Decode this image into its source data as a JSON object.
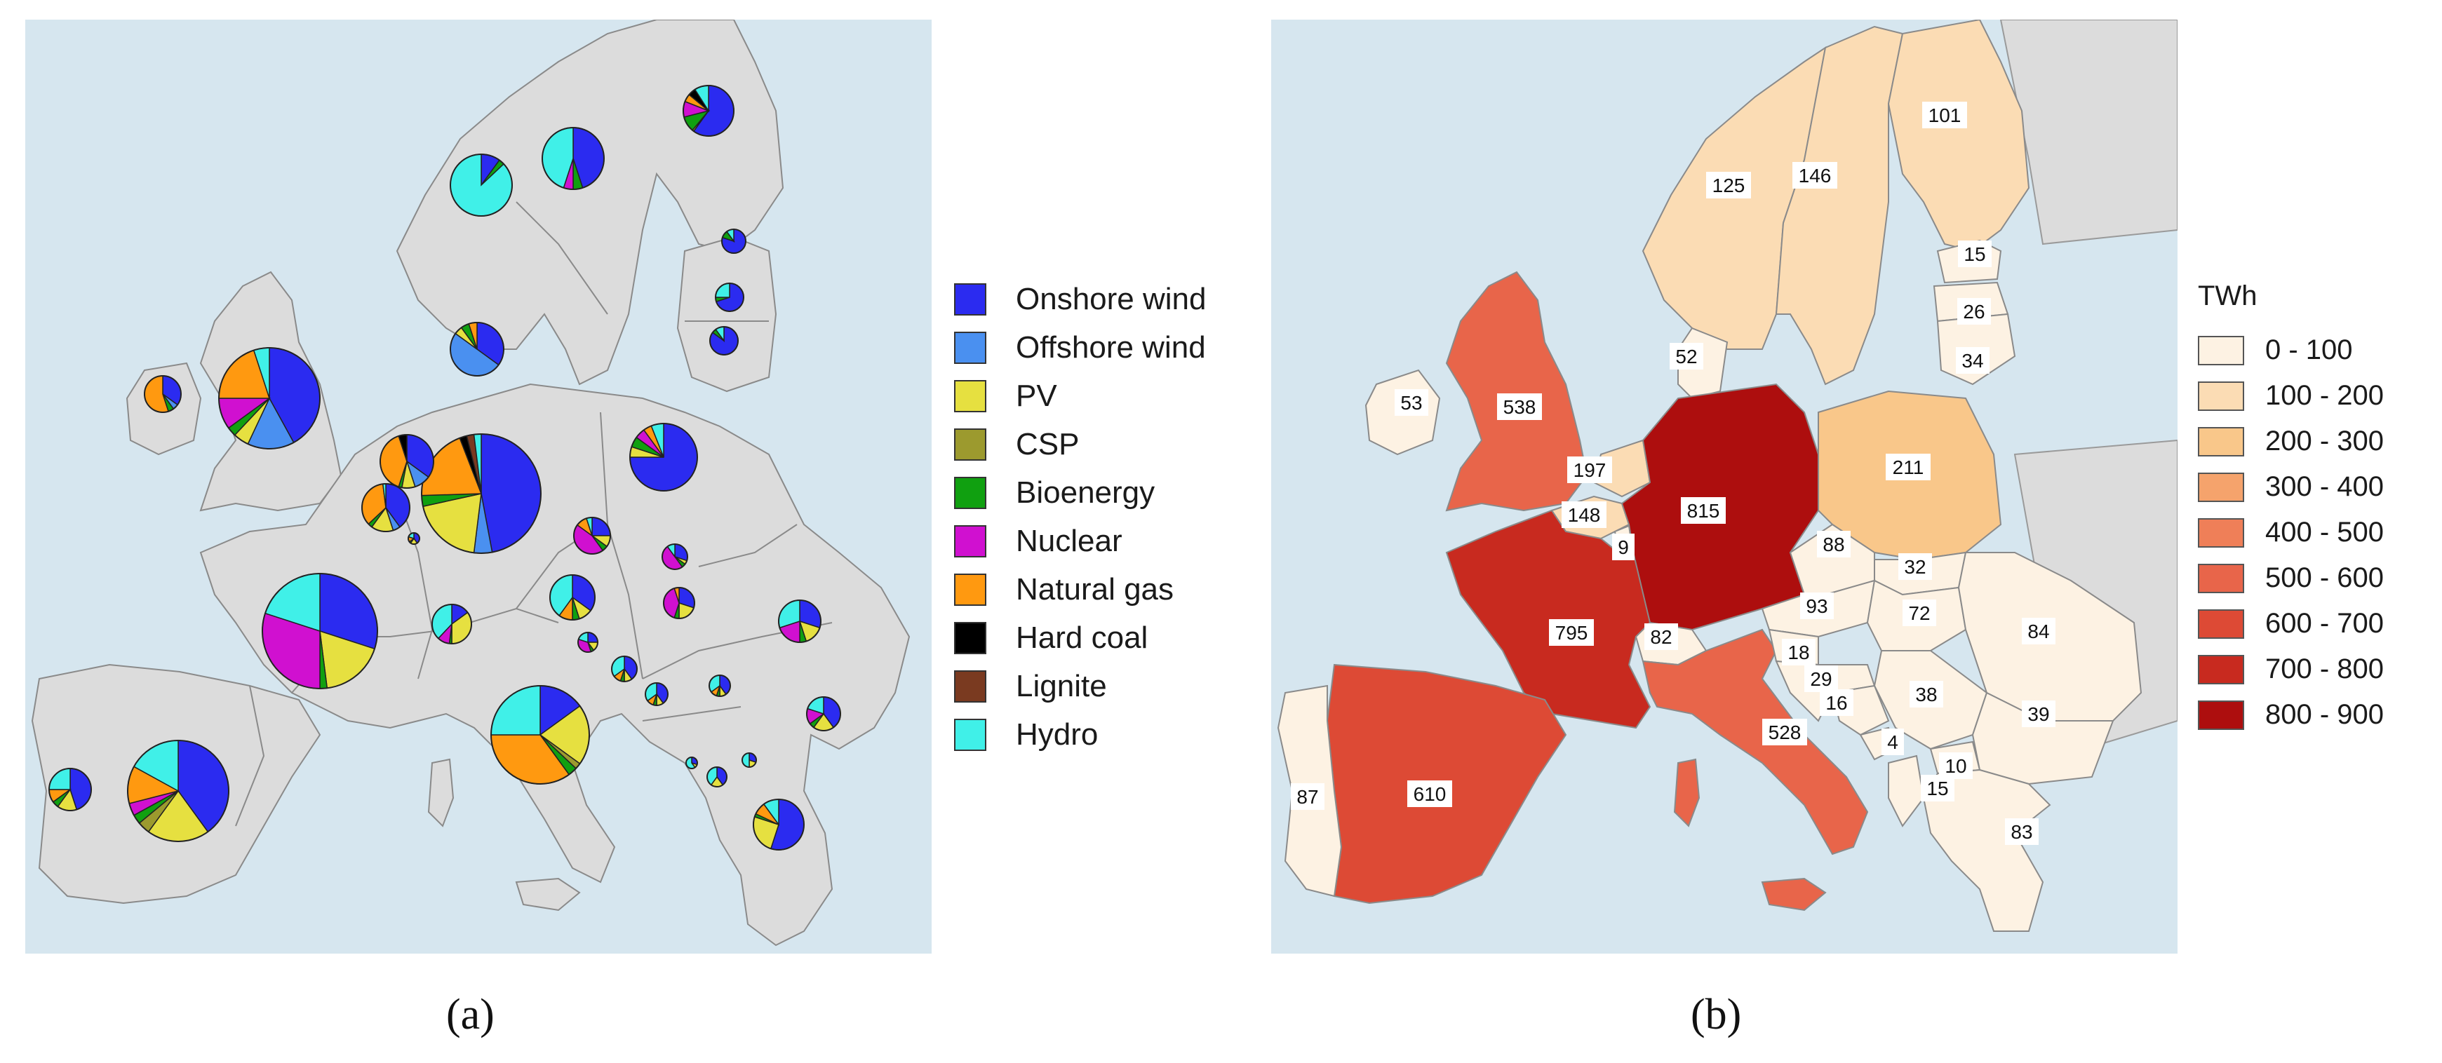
{
  "panel_a": {
    "caption": "(a)",
    "legend": [
      {
        "label": "Onshore wind",
        "color": "#2b2bf0",
        "name": "onshore-wind"
      },
      {
        "label": "Offshore wind",
        "color": "#4a90f0",
        "name": "offshore-wind"
      },
      {
        "label": "PV",
        "color": "#e6e040",
        "name": "pv"
      },
      {
        "label": "CSP",
        "color": "#9c9a2e",
        "name": "csp"
      },
      {
        "label": "Bioenergy",
        "color": "#10a010",
        "name": "bioenergy"
      },
      {
        "label": "Nuclear",
        "color": "#d010d0",
        "name": "nuclear"
      },
      {
        "label": "Natural gas",
        "color": "#ff9910",
        "name": "natural-gas"
      },
      {
        "label": "Hard coal",
        "color": "#000000",
        "name": "hard-coal"
      },
      {
        "label": "Lignite",
        "color": "#7a3a20",
        "name": "lignite"
      },
      {
        "label": "Hydro",
        "color": "#40f0e8",
        "name": "hydro"
      }
    ],
    "pies": [
      {
        "name": "germany",
        "r": 85,
        "shares": [
          0.48,
          0.05,
          0.2,
          0,
          0.03,
          0,
          0.2,
          0.02,
          0.02,
          0.02
        ]
      },
      {
        "name": "france",
        "r": 82,
        "shares": [
          0.3,
          0,
          0.18,
          0,
          0.02,
          0.3,
          0,
          0,
          0,
          0.2
        ]
      },
      {
        "name": "spain",
        "r": 72,
        "shares": [
          0.4,
          0,
          0.2,
          0.04,
          0.03,
          0.04,
          0.12,
          0,
          0,
          0.17
        ]
      },
      {
        "name": "italy",
        "r": 70,
        "shares": [
          0.15,
          0,
          0.2,
          0.02,
          0.03,
          0,
          0.35,
          0,
          0,
          0.25
        ]
      },
      {
        "name": "united-kingdom",
        "r": 72,
        "shares": [
          0.42,
          0.15,
          0.05,
          0,
          0.03,
          0.1,
          0.2,
          0,
          0,
          0.05
        ]
      },
      {
        "name": "sweden",
        "r": 44,
        "shares": [
          0.45,
          0,
          0,
          0,
          0.05,
          0.05,
          0,
          0,
          0,
          0.45
        ]
      },
      {
        "name": "norway",
        "r": 44,
        "shares": [
          0.1,
          0,
          0,
          0,
          0.03,
          0,
          0,
          0,
          0,
          0.87
        ]
      },
      {
        "name": "finland",
        "r": 36,
        "shares": [
          0.6,
          0,
          0.01,
          0,
          0.1,
          0.1,
          0.05,
          0.05,
          0,
          0.09
        ]
      },
      {
        "name": "denmark",
        "r": 38,
        "shares": [
          0.35,
          0.5,
          0.05,
          0,
          0.05,
          0,
          0.05,
          0,
          0,
          0
        ]
      },
      {
        "name": "poland",
        "r": 48,
        "shares": [
          0.75,
          0,
          0.05,
          0,
          0.05,
          0.05,
          0.04,
          0,
          0,
          0.06
        ]
      },
      {
        "name": "netherlands",
        "r": 38,
        "shares": [
          0.35,
          0.1,
          0.08,
          0,
          0.02,
          0,
          0.4,
          0.05,
          0,
          0
        ]
      },
      {
        "name": "belgium",
        "r": 34,
        "shares": [
          0.4,
          0.05,
          0.15,
          0,
          0.03,
          0,
          0.35,
          0,
          0,
          0.02
        ]
      },
      {
        "name": "czechia",
        "r": 26,
        "shares": [
          0.25,
          0,
          0.1,
          0,
          0.05,
          0.45,
          0.1,
          0,
          0,
          0.05
        ]
      },
      {
        "name": "austria",
        "r": 32,
        "shares": [
          0.35,
          0,
          0.1,
          0,
          0.05,
          0,
          0.1,
          0,
          0,
          0.4
        ]
      },
      {
        "name": "switzerland",
        "r": 28,
        "shares": [
          0.15,
          0,
          0.35,
          0,
          0.02,
          0.1,
          0,
          0,
          0,
          0.38
        ]
      },
      {
        "name": "portugal",
        "r": 30,
        "shares": [
          0.45,
          0,
          0.15,
          0,
          0.05,
          0,
          0.1,
          0,
          0,
          0.25
        ]
      },
      {
        "name": "ireland",
        "r": 26,
        "shares": [
          0.35,
          0.05,
          0,
          0,
          0.05,
          0,
          0.55,
          0,
          0,
          0
        ]
      },
      {
        "name": "romania",
        "r": 30,
        "shares": [
          0.3,
          0,
          0.15,
          0,
          0.05,
          0.2,
          0,
          0,
          0,
          0.3
        ]
      },
      {
        "name": "greece",
        "r": 36,
        "shares": [
          0.55,
          0,
          0.25,
          0,
          0.02,
          0,
          0.08,
          0,
          0,
          0.1
        ]
      },
      {
        "name": "lithuania",
        "r": 20,
        "shares": [
          0.85,
          0,
          0,
          0,
          0.05,
          0,
          0,
          0,
          0,
          0.1
        ]
      },
      {
        "name": "latvia",
        "r": 20,
        "shares": [
          0.7,
          0,
          0,
          0,
          0.05,
          0,
          0,
          0,
          0,
          0.25
        ]
      },
      {
        "name": "estonia",
        "r": 17,
        "shares": [
          0.8,
          0,
          0,
          0,
          0.1,
          0,
          0,
          0,
          0,
          0.1
        ]
      },
      {
        "name": "slovakia",
        "r": 18,
        "shares": [
          0.3,
          0,
          0.05,
          0,
          0.05,
          0.5,
          0,
          0,
          0,
          0.1
        ]
      },
      {
        "name": "hungary",
        "r": 22,
        "shares": [
          0.3,
          0,
          0.2,
          0,
          0.05,
          0.4,
          0.05,
          0,
          0,
          0
        ]
      },
      {
        "name": "bulgaria",
        "r": 24,
        "shares": [
          0.4,
          0,
          0.2,
          0,
          0.05,
          0.15,
          0,
          0,
          0,
          0.2
        ]
      },
      {
        "name": "croatia",
        "r": 18,
        "shares": [
          0.4,
          0,
          0.1,
          0,
          0.05,
          0,
          0.1,
          0,
          0,
          0.35
        ]
      },
      {
        "name": "slovenia",
        "r": 14,
        "shares": [
          0.25,
          0,
          0.15,
          0,
          0.05,
          0.35,
          0,
          0,
          0,
          0.2
        ]
      },
      {
        "name": "serbia",
        "r": 16,
        "shares": [
          0.4,
          0,
          0.1,
          0,
          0.05,
          0,
          0.1,
          0,
          0,
          0.35
        ]
      },
      {
        "name": "bosnia",
        "r": 15,
        "shares": [
          0.4,
          0,
          0.1,
          0,
          0.05,
          0,
          0.1,
          0,
          0,
          0.35
        ]
      },
      {
        "name": "luxembourg",
        "r": 8,
        "shares": [
          0.4,
          0,
          0.2,
          0,
          0.05,
          0,
          0.15,
          0,
          0,
          0.2
        ]
      },
      {
        "name": "montenegro",
        "r": 8,
        "shares": [
          0.3,
          0,
          0.1,
          0,
          0,
          0,
          0,
          0,
          0,
          0.6
        ]
      },
      {
        "name": "north-macedonia",
        "r": 10,
        "shares": [
          0.3,
          0,
          0.2,
          0,
          0,
          0,
          0,
          0,
          0,
          0.5
        ]
      },
      {
        "name": "albania",
        "r": 14,
        "shares": [
          0.4,
          0,
          0.2,
          0,
          0,
          0,
          0,
          0,
          0,
          0.4
        ]
      }
    ]
  },
  "panel_b": {
    "caption": "(b)",
    "legend_title": "TWh",
    "legend": [
      {
        "label": "0 - 100",
        "color": "#fdf2e3"
      },
      {
        "label": "100 - 200",
        "color": "#fbdcb4"
      },
      {
        "label": "200 - 300",
        "color": "#f9c78a"
      },
      {
        "label": "300 - 400",
        "color": "#f5a36c"
      },
      {
        "label": "400 - 500",
        "color": "#ef7f58"
      },
      {
        "label": "500 - 600",
        "color": "#e8654a"
      },
      {
        "label": "600 - 700",
        "color": "#dd4a35"
      },
      {
        "label": "700 - 800",
        "color": "#c82a1f"
      },
      {
        "label": "800 - 900",
        "color": "#ad0e0e"
      }
    ],
    "values": [
      {
        "name": "norway",
        "value": "125"
      },
      {
        "name": "sweden",
        "value": "146"
      },
      {
        "name": "finland",
        "value": "101"
      },
      {
        "name": "estonia",
        "value": "15"
      },
      {
        "name": "latvia",
        "value": "26"
      },
      {
        "name": "lithuania",
        "value": "34"
      },
      {
        "name": "denmark",
        "value": "52"
      },
      {
        "name": "ireland",
        "value": "53"
      },
      {
        "name": "united-kingdom",
        "value": "538"
      },
      {
        "name": "netherlands",
        "value": "197"
      },
      {
        "name": "belgium",
        "value": "148"
      },
      {
        "name": "luxembourg",
        "value": "9"
      },
      {
        "name": "germany",
        "value": "815"
      },
      {
        "name": "poland",
        "value": "211"
      },
      {
        "name": "czechia",
        "value": "88"
      },
      {
        "name": "slovakia",
        "value": "32"
      },
      {
        "name": "austria",
        "value": "93"
      },
      {
        "name": "hungary",
        "value": "72"
      },
      {
        "name": "romania",
        "value": "84"
      },
      {
        "name": "france",
        "value": "795"
      },
      {
        "name": "switzerland",
        "value": "82"
      },
      {
        "name": "slovenia",
        "value": "18"
      },
      {
        "name": "croatia",
        "value": "29"
      },
      {
        "name": "bosnia",
        "value": "16"
      },
      {
        "name": "serbia",
        "value": "38"
      },
      {
        "name": "bulgaria",
        "value": "39"
      },
      {
        "name": "montenegro",
        "value": "4"
      },
      {
        "name": "north-macedonia",
        "value": "10"
      },
      {
        "name": "albania",
        "value": "15"
      },
      {
        "name": "greece",
        "value": "83"
      },
      {
        "name": "italy",
        "value": "528"
      },
      {
        "name": "spain",
        "value": "610"
      },
      {
        "name": "portugal",
        "value": "87"
      }
    ]
  }
}
